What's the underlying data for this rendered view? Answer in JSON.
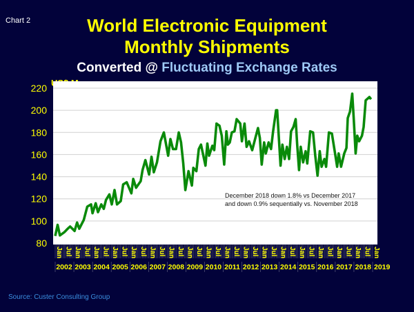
{
  "header": {
    "chart_label": "Chart 2",
    "title_line1": "World Electronic Equipment",
    "title_line2": "Monthly Shipments",
    "subtitle_prefix": "Converted @ ",
    "subtitle_highlight": "Fluctuating Exchange Rates"
  },
  "source": "Source: Custer Consulting Group",
  "colors": {
    "background": "#02023a",
    "title": "#ffff00",
    "line": "#0a8a0a",
    "highlight": "#9ec9f5"
  },
  "chart_data": {
    "type": "line",
    "title": "World Electronic Equipment Monthly Shipments",
    "ylabel": "US$ M",
    "xlabel": "",
    "ylim": [
      80,
      220
    ],
    "yticks": [
      80,
      100,
      120,
      140,
      160,
      180,
      200,
      220
    ],
    "xlim": [
      2002,
      2019
    ],
    "years": [
      "2002",
      "2003",
      "2004",
      "2005",
      "2006",
      "2007",
      "2008",
      "2009",
      "2010",
      "2011",
      "2012",
      "2013",
      "2014",
      "2015",
      "2016",
      "2017",
      "2018",
      "2019"
    ],
    "month_tick_labels": [
      "Jan",
      "Jul"
    ],
    "grid": true,
    "annotation": [
      "December 2018 down 1.8% vs December 2017",
      "and down 0.9% sequentially vs. November 2018"
    ],
    "series": [
      {
        "name": "Shipments",
        "points": [
          [
            2002.0,
            86.5
          ],
          [
            2002.13,
            96.5
          ],
          [
            2002.25,
            87
          ],
          [
            2002.5,
            90
          ],
          [
            2002.67,
            93
          ],
          [
            2002.8,
            95
          ],
          [
            2003.04,
            91
          ],
          [
            2003.17,
            98.6
          ],
          [
            2003.29,
            93
          ],
          [
            2003.53,
            101
          ],
          [
            2003.72,
            113
          ],
          [
            2003.92,
            115
          ],
          [
            2004.0,
            107
          ],
          [
            2004.17,
            116
          ],
          [
            2004.29,
            108
          ],
          [
            2004.47,
            115
          ],
          [
            2004.6,
            111
          ],
          [
            2004.72,
            119
          ],
          [
            2004.9,
            124
          ],
          [
            2005.03,
            115
          ],
          [
            2005.18,
            128
          ],
          [
            2005.31,
            115
          ],
          [
            2005.51,
            118
          ],
          [
            2005.64,
            133
          ],
          [
            2005.83,
            135
          ],
          [
            2006.08,
            125
          ],
          [
            2006.18,
            138
          ],
          [
            2006.33,
            130
          ],
          [
            2006.58,
            136
          ],
          [
            2006.68,
            146
          ],
          [
            2006.83,
            155
          ],
          [
            2007.03,
            142
          ],
          [
            2007.16,
            158
          ],
          [
            2007.28,
            144
          ],
          [
            2007.45,
            153
          ],
          [
            2007.64,
            172
          ],
          [
            2007.82,
            180
          ],
          [
            2008.05,
            159
          ],
          [
            2008.17,
            174
          ],
          [
            2008.31,
            165
          ],
          [
            2008.47,
            165
          ],
          [
            2008.62,
            180
          ],
          [
            2008.74,
            171
          ],
          [
            2008.86,
            152
          ],
          [
            2008.97,
            128
          ],
          [
            2009.14,
            145
          ],
          [
            2009.32,
            132
          ],
          [
            2009.4,
            148
          ],
          [
            2009.56,
            145
          ],
          [
            2009.69,
            165
          ],
          [
            2009.81,
            169
          ],
          [
            2010.05,
            150
          ],
          [
            2010.15,
            170
          ],
          [
            2010.24,
            159
          ],
          [
            2010.42,
            168
          ],
          [
            2010.52,
            164
          ],
          [
            2010.64,
            188
          ],
          [
            2010.8,
            186
          ],
          [
            2010.92,
            177
          ],
          [
            2011.05,
            151
          ],
          [
            2011.17,
            181
          ],
          [
            2011.25,
            169
          ],
          [
            2011.35,
            171
          ],
          [
            2011.46,
            180
          ],
          [
            2011.6,
            181
          ],
          [
            2011.72,
            192
          ],
          [
            2011.91,
            188
          ],
          [
            2012.0,
            172
          ],
          [
            2012.14,
            188
          ],
          [
            2012.25,
            167
          ],
          [
            2012.38,
            172
          ],
          [
            2012.55,
            164
          ],
          [
            2012.72,
            175
          ],
          [
            2012.86,
            184
          ],
          [
            2012.96,
            175
          ],
          [
            2013.06,
            151
          ],
          [
            2013.19,
            171
          ],
          [
            2013.28,
            161
          ],
          [
            2013.43,
            171
          ],
          [
            2013.56,
            165
          ],
          [
            2013.67,
            181
          ],
          [
            2013.83,
            200
          ],
          [
            2013.89,
            200
          ],
          [
            2014.07,
            150
          ],
          [
            2014.17,
            169
          ],
          [
            2014.29,
            156
          ],
          [
            2014.41,
            167
          ],
          [
            2014.53,
            156
          ],
          [
            2014.63,
            181
          ],
          [
            2014.76,
            185
          ],
          [
            2014.88,
            192
          ],
          [
            2014.96,
            169
          ],
          [
            2015.06,
            146
          ],
          [
            2015.15,
            167
          ],
          [
            2015.28,
            153
          ],
          [
            2015.41,
            163
          ],
          [
            2015.5,
            152
          ],
          [
            2015.66,
            181
          ],
          [
            2015.81,
            180
          ],
          [
            2015.93,
            159
          ],
          [
            2016.05,
            141
          ],
          [
            2016.17,
            163
          ],
          [
            2016.27,
            149
          ],
          [
            2016.42,
            156
          ],
          [
            2016.51,
            149
          ],
          [
            2016.66,
            180
          ],
          [
            2016.82,
            179
          ],
          [
            2016.97,
            163
          ],
          [
            2017.1,
            149
          ],
          [
            2017.18,
            161
          ],
          [
            2017.31,
            149
          ],
          [
            2017.48,
            161
          ],
          [
            2017.6,
            166
          ],
          [
            2017.67,
            193
          ],
          [
            2017.79,
            199
          ],
          [
            2017.91,
            215
          ],
          [
            2017.99,
            192
          ],
          [
            2018.09,
            161
          ],
          [
            2018.18,
            177
          ],
          [
            2018.28,
            172
          ],
          [
            2018.43,
            177
          ],
          [
            2018.52,
            185
          ],
          [
            2018.63,
            209
          ],
          [
            2018.83,
            212
          ],
          [
            2018.92,
            210
          ]
        ]
      }
    ]
  }
}
